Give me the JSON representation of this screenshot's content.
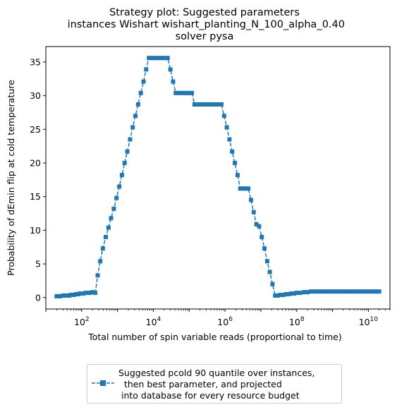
{
  "chart_data": {
    "type": "line",
    "title": "Strategy plot: Suggested parameters\n instances Wishart wishart_planting_N_100_alpha_0.40\nsolver pysa",
    "xlabel": "Total number of spin variable reads (proportional to time)",
    "ylabel": "Probability of dEmin flip at cold temperature",
    "xscale": "log",
    "xlim": [
      10,
      40000000000
    ],
    "ylim": [
      -1.7,
      37.3
    ],
    "xticks": [
      {
        "value": 100,
        "base": "10",
        "exp": "2"
      },
      {
        "value": 10000,
        "base": "10",
        "exp": "4"
      },
      {
        "value": 1000000,
        "base": "10",
        "exp": "6"
      },
      {
        "value": 100000000,
        "base": "10",
        "exp": "8"
      },
      {
        "value": 10000000000,
        "base": "10",
        "exp": "10"
      }
    ],
    "yticks": [
      0,
      5,
      10,
      15,
      20,
      25,
      30,
      35
    ],
    "grid": false,
    "legend_position": "below",
    "color": "#1f77b4",
    "marker": "square",
    "series": [
      {
        "name": "Suggested pcold 90 quantile over instances,\n  then best parameter, and projected\n into database for every resource budget",
        "x": [
          20,
          25,
          30,
          35,
          40,
          45,
          50,
          60,
          70,
          80,
          90,
          110,
          130,
          150,
          170,
          200,
          240,
          280,
          330,
          390,
          470,
          560,
          660,
          790,
          940,
          1120,
          1330,
          1580,
          1880,
          2240,
          2660,
          3160,
          3760,
          4470,
          5310,
          6310,
          7500,
          8910,
          10600,
          12600,
          15000,
          17800,
          21100,
          25100,
          29900,
          35500,
          42200,
          50100,
          59600,
          70800,
          84100,
          100000,
          119000,
          141000,
          168000,
          200000,
          237000,
          282000,
          335000,
          398000,
          473000,
          562000,
          668000,
          794000,
          944000,
          1120000,
          1330000,
          1580000,
          1880000,
          2240000,
          2660000,
          3160000,
          3760000,
          4470000,
          5310000,
          6310000,
          7500000,
          8910000,
          10600000,
          12600000,
          15000000,
          17800000,
          21100000,
          25100000,
          29900000,
          35500000,
          42200000,
          50100000,
          59600000,
          70800000,
          84100000,
          100000000,
          125000000,
          160000000,
          200000000,
          250000000,
          320000000,
          400000000,
          500000000,
          630000000,
          800000000,
          1000000000,
          1250000000,
          1600000000,
          2000000000,
          2500000000,
          3200000000,
          4000000000,
          5000000000,
          6300000000,
          8000000000,
          10000000000,
          12500000000,
          16000000000,
          20000000000
        ],
        "y": [
          0.2,
          0.2,
          0.3,
          0.3,
          0.3,
          0.3,
          0.4,
          0.4,
          0.5,
          0.5,
          0.6,
          0.6,
          0.7,
          0.7,
          0.7,
          0.8,
          0.7,
          3.3,
          5.4,
          7.3,
          9.0,
          10.4,
          11.8,
          13.2,
          14.8,
          16.5,
          18.2,
          20.0,
          21.7,
          23.5,
          25.3,
          27.0,
          28.7,
          30.4,
          32.1,
          33.9,
          35.6,
          35.6,
          35.6,
          35.6,
          35.6,
          35.6,
          35.6,
          35.6,
          33.9,
          32.1,
          30.4,
          30.4,
          30.4,
          30.4,
          30.4,
          30.4,
          30.4,
          28.7,
          28.7,
          28.7,
          28.7,
          28.7,
          28.7,
          28.7,
          28.7,
          28.7,
          28.7,
          28.7,
          27.0,
          25.3,
          23.5,
          21.7,
          20.0,
          18.2,
          16.2,
          16.2,
          16.2,
          16.2,
          14.5,
          12.7,
          10.9,
          10.6,
          9.0,
          7.3,
          5.4,
          3.8,
          2.0,
          0.3,
          0.3,
          0.4,
          0.4,
          0.5,
          0.5,
          0.6,
          0.6,
          0.7,
          0.7,
          0.8,
          0.8,
          0.9,
          0.9,
          0.9,
          0.9,
          0.9,
          0.9,
          0.9,
          0.9,
          0.9,
          0.9,
          0.9,
          0.9,
          0.9,
          0.9,
          0.9,
          0.9,
          0.9,
          0.9,
          0.9,
          0.9
        ]
      }
    ]
  }
}
